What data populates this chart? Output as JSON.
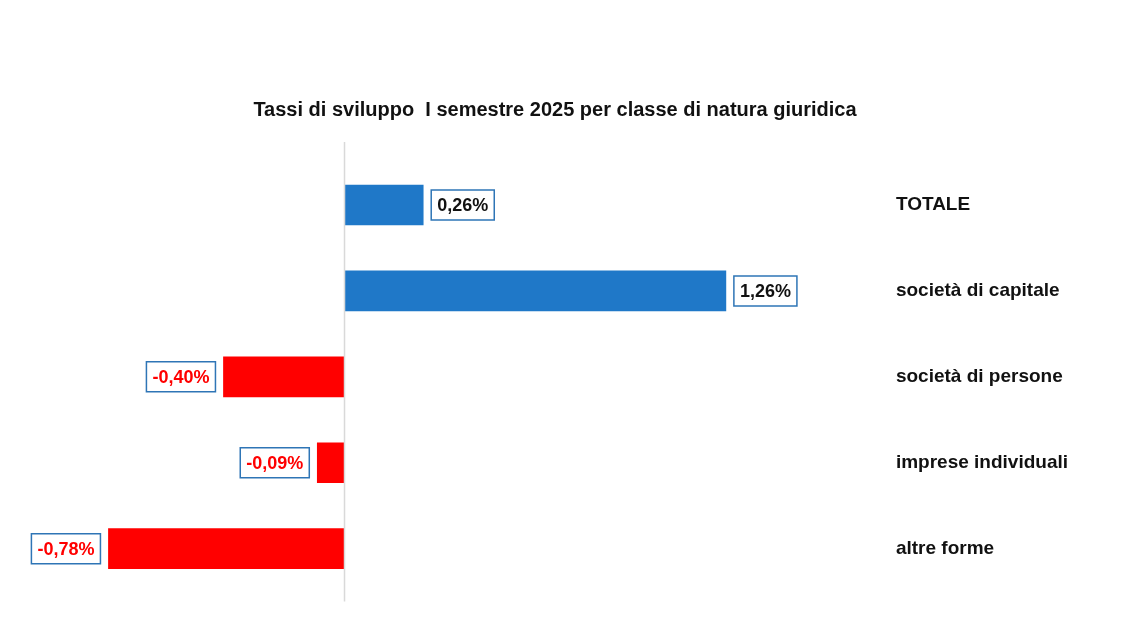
{
  "chart_data": {
    "type": "bar",
    "orientation": "horizontal",
    "title": "Tassi di sviluppo  I semestre 2025 per classe di natura giuridica",
    "categories": [
      "TOTALE",
      "società di capitale",
      "società di persone",
      "imprese individuali",
      "altre forme"
    ],
    "values": [
      0.26,
      1.26,
      -0.4,
      -0.09,
      -0.78
    ],
    "colors": [
      "#1f78c8",
      "#1f78c8",
      "#ff0000",
      "#ff0000",
      "#ff0000"
    ],
    "value_labels": [
      "0,26%",
      "1,26%",
      "-0,40%",
      "-0,09%",
      "-0,78%"
    ],
    "legend": false
  }
}
